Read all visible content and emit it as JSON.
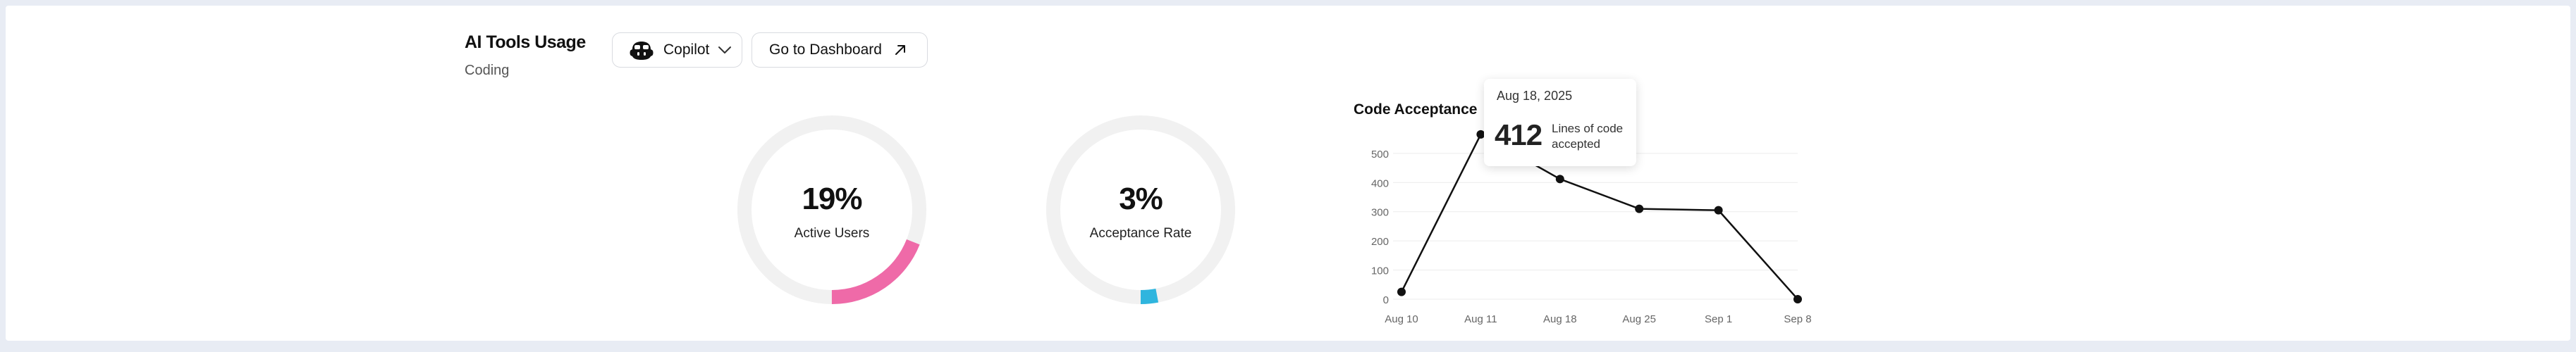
{
  "header": {
    "title": "AI Tools Usage",
    "subtitle": "Coding"
  },
  "toolbar": {
    "tool_select": {
      "label": "Copilot",
      "icon": "copilot-icon"
    },
    "dashboard_button": {
      "label": "Go to Dashboard",
      "icon": "arrow-up-right-icon"
    }
  },
  "metrics": {
    "active_users": {
      "value": "19%",
      "fraction": 0.19,
      "label": "Active Users",
      "color": "#ef6aa8"
    },
    "acceptance_rate": {
      "value": "3%",
      "fraction": 0.03,
      "label": "Acceptance Rate",
      "color": "#2fb5de"
    }
  },
  "tooltip": {
    "date": "Aug 18, 2025",
    "value": "412",
    "label": "Lines of code accepted"
  },
  "chart_data": {
    "type": "line",
    "title": "Code Acceptance",
    "categories": [
      "Aug 10",
      "Aug 11",
      "Aug 18",
      "Aug 25",
      "Sep 1",
      "Sep 8"
    ],
    "values": [
      25,
      565,
      412,
      310,
      305,
      0
    ],
    "yticks": [
      0,
      100,
      200,
      300,
      400,
      500
    ],
    "ylim": [
      0,
      560
    ],
    "grid": true,
    "line_color": "#111111",
    "grid_color": "#ececec"
  },
  "colors": {
    "track": "#f1f1f1",
    "background": "#e8ecf4"
  }
}
